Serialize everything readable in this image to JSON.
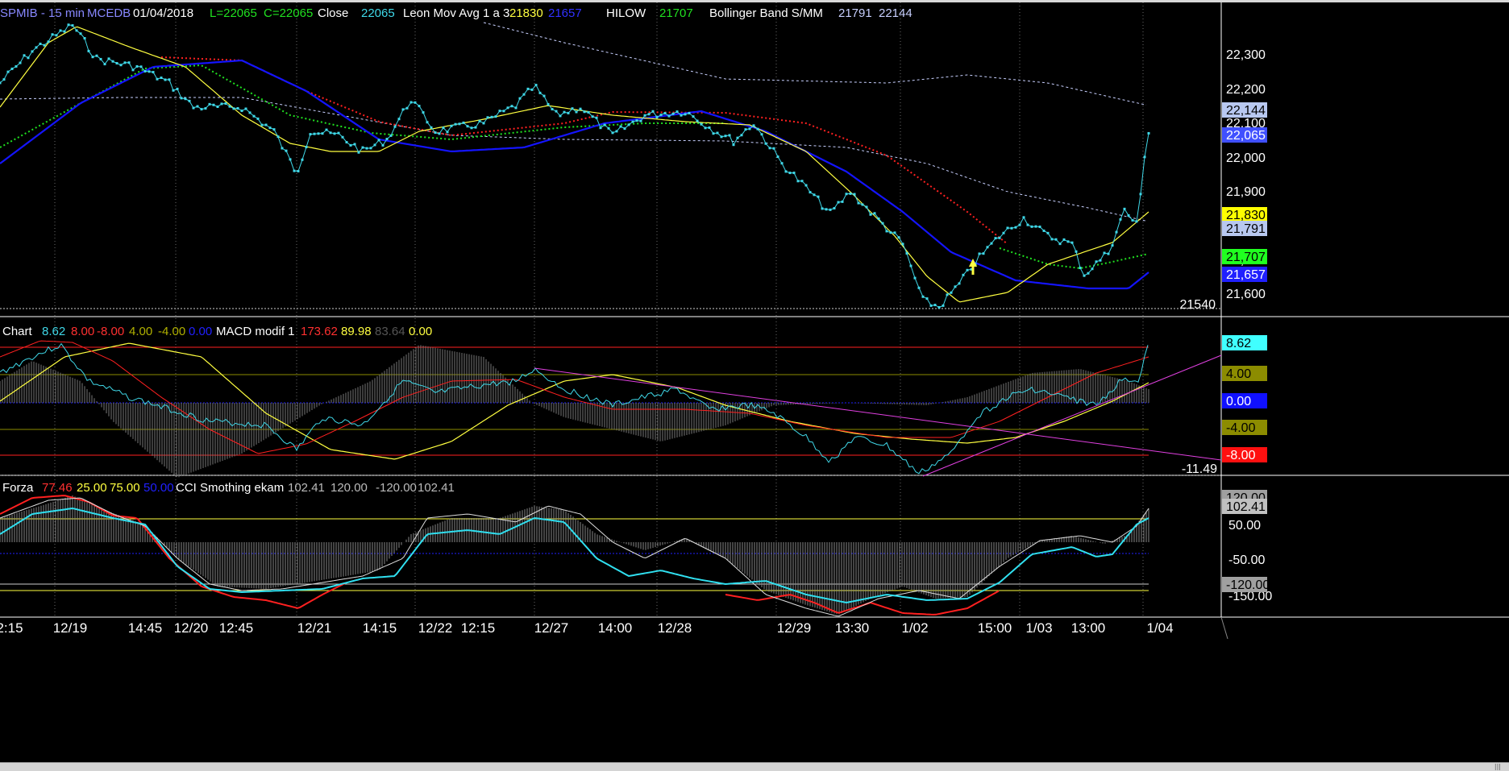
{
  "app": {
    "title": "SPMIB - 15 min",
    "source": "MCEDB"
  },
  "colors": {
    "price": "#3fd8e8",
    "leon": "#ffff40",
    "hilow_blue": "#1414ff",
    "red_avg": "#ff2020",
    "green_avg": "#20e020",
    "bollinger": "#c8d0ff",
    "magenta": "#e040e0",
    "grid": "#6a6a6a"
  },
  "pane1": {
    "header": [
      {
        "t": "SPMIB - 15 min",
        "c": "#8888ff"
      },
      {
        "t": "MCEDB",
        "c": "#8888ff"
      },
      {
        "t": "01/04/2018",
        "c": "#ffffff"
      },
      {
        "t": "L=22065",
        "c": "#20e020"
      },
      {
        "t": "C=22065",
        "c": "#20e020"
      },
      {
        "t": "Close",
        "c": "#ffffff"
      },
      {
        "t": "22065",
        "c": "#3fd8e8"
      },
      {
        "t": "Leon Mov Avg 1 a 3",
        "c": "#ffffff"
      },
      {
        "t": "21830",
        "c": "#ffff40"
      },
      {
        "t": "21657",
        "c": "#3030ff"
      },
      {
        "t": "HILOW",
        "c": "#ffffff"
      },
      {
        "t": "21707",
        "c": "#20e020"
      },
      {
        "t": "Bollinger Band S/MM",
        "c": "#ffffff"
      },
      {
        "t": "21791",
        "c": "#c8d0ff"
      },
      {
        "t": "22144",
        "c": "#c8d0ff"
      }
    ],
    "axis_labels": [
      "22,300",
      "22,200",
      "22,100",
      "22,000",
      "21,900",
      "21,800",
      "21,700",
      "21,600"
    ],
    "tags": [
      {
        "t": "22,144",
        "bg": "#b8c8f0",
        "fg": "#000000"
      },
      {
        "t": "22,065",
        "bg": "#4050ff",
        "fg": "#ffffff"
      },
      {
        "t": "21,830",
        "bg": "#ffff00",
        "fg": "#000000"
      },
      {
        "t": "21,791",
        "bg": "#b8c8f0",
        "fg": "#000000"
      },
      {
        "t": "21,707",
        "bg": "#20ff20",
        "fg": "#000000"
      },
      {
        "t": "21,657",
        "bg": "#2020ff",
        "fg": "#ffffff"
      }
    ],
    "low_marker": "21540"
  },
  "pane2": {
    "header": [
      {
        "t": "Chart",
        "c": "#ffffff"
      },
      {
        "t": "8.62",
        "c": "#3fd8e8"
      },
      {
        "t": "8.00",
        "c": "#ff3030"
      },
      {
        "t": "-8.00",
        "c": "#ff3030"
      },
      {
        "t": "4.00",
        "c": "#b0b000"
      },
      {
        "t": "-4.00",
        "c": "#b0b000"
      },
      {
        "t": "0.00",
        "c": "#2020ff"
      },
      {
        "t": "MACD modif 1",
        "c": "#ffffff"
      },
      {
        "t": "173.62",
        "c": "#ff3030"
      },
      {
        "t": "89.98",
        "c": "#ffff40"
      },
      {
        "t": "83.64",
        "c": "#555555"
      },
      {
        "t": "0.00",
        "c": "#ffff40"
      }
    ],
    "tags": [
      {
        "t": "8.62",
        "bg": "#40ffff",
        "fg": "#000000"
      },
      {
        "t": "4.00",
        "bg": "#8c8c00",
        "fg": "#000000"
      },
      {
        "t": "0.00",
        "bg": "#1010ff",
        "fg": "#ffffff"
      },
      {
        "t": "-4.00",
        "bg": "#8c8c00",
        "fg": "#000000"
      },
      {
        "t": "-8.00",
        "bg": "#ff1010",
        "fg": "#ffffff"
      }
    ],
    "low_marker": "-11.49"
  },
  "pane3": {
    "header": [
      {
        "t": "Forza",
        "c": "#ffffff"
      },
      {
        "t": "77.46",
        "c": "#ff3030"
      },
      {
        "t": "25.00",
        "c": "#ffff40"
      },
      {
        "t": "75.00",
        "c": "#ffff40"
      },
      {
        "t": "50.00",
        "c": "#2020ff"
      },
      {
        "t": "CCI Smothing ekam",
        "c": "#ffffff"
      },
      {
        "t": "102.41",
        "c": "#bbbbbb"
      },
      {
        "t": "120.00",
        "c": "#bbbbbb"
      },
      {
        "t": "-120.00",
        "c": "#bbbbbb"
      },
      {
        "t": "102.41",
        "c": "#bbbbbb"
      }
    ],
    "tags": [
      {
        "t": "120.00",
        "bg": "#a0a0a0",
        "fg": "#000000"
      },
      {
        "t": "102.41",
        "bg": "#c0c0c0",
        "fg": "#000000"
      },
      {
        "t": "-120.00",
        "bg": "#a0a0a0",
        "fg": "#000000"
      }
    ],
    "axis_labels": [
      "50.00",
      "-50.00",
      "-150.00"
    ]
  },
  "x_labels": [
    "2:15",
    "12/19",
    "14:45",
    "12/20",
    "12:45",
    "12/21",
    "14:15",
    "12/22",
    "12:15",
    "12/27",
    "14:00",
    "12/28",
    "12/29",
    "13:30",
    "1/02",
    "15:00",
    "1/03",
    "13:00",
    "1/04"
  ],
  "chart_data": [
    {
      "type": "line",
      "title": "SPMIB - 15 min",
      "x": [
        "12/19",
        "12/20",
        "12/21",
        "12/22",
        "12/27",
        "12/28",
        "12/29",
        "1/02",
        "1/03",
        "1/04"
      ],
      "ylim": [
        21540,
        22350
      ],
      "series": [
        {
          "name": "Close",
          "values": [
            22280,
            22150,
            22030,
            22080,
            22120,
            22090,
            22040,
            21620,
            21750,
            22065
          ]
        },
        {
          "name": "Leon Mov Avg 1 a 3",
          "values": [
            22270,
            22200,
            22010,
            22040,
            22140,
            22100,
            21980,
            21660,
            21720,
            21830
          ]
        },
        {
          "name": "21657",
          "values": [
            22120,
            22270,
            22150,
            22020,
            22050,
            22120,
            22090,
            21780,
            21630,
            21657
          ]
        },
        {
          "name": "HILOW",
          "values": [
            22080,
            22210,
            22100,
            22050,
            22080,
            22090,
            22090,
            21870,
            21720,
            21707
          ]
        },
        {
          "name": "Bollinger Band S/MM",
          "values": [
            22180,
            22200,
            22180,
            22150,
            22140,
            22140,
            22120,
            21970,
            21830,
            21791
          ]
        }
      ]
    },
    {
      "type": "line",
      "title": "MACD modif 1",
      "x": [
        "12/19",
        "12/20",
        "12/21",
        "12/22",
        "12/27",
        "12/28",
        "12/29",
        "1/02",
        "1/03",
        "1/04"
      ],
      "ylim": [
        -11.49,
        8.62
      ],
      "series": [
        {
          "name": "Chart",
          "values": [
            7.5,
            0.3,
            -3.5,
            1.5,
            4.5,
            0.5,
            -4,
            -10,
            1.5,
            8.62
          ]
        },
        {
          "name": "MACD modif 1",
          "values": [
            8.0,
            -3,
            -7.5,
            -1,
            3.5,
            0.5,
            -2,
            -5.5,
            2,
            5
          ]
        }
      ]
    },
    {
      "type": "line",
      "title": "CCI Smothing ekam",
      "x": [
        "12/19",
        "12/20",
        "12/21",
        "12/22",
        "12/27",
        "12/28",
        "12/29",
        "1/02",
        "1/03",
        "1/04"
      ],
      "ylim": [
        -170,
        130
      ],
      "series": [
        {
          "name": "Forza",
          "values": [
            130,
            -40,
            -140,
            30,
            70,
            -70,
            -160,
            -140,
            -40,
            102.41
          ]
        },
        {
          "name": "CCI Smothing ekam",
          "values": [
            140,
            -20,
            -110,
            40,
            100,
            -50,
            -140,
            -110,
            -20,
            102.41
          ]
        }
      ]
    }
  ]
}
